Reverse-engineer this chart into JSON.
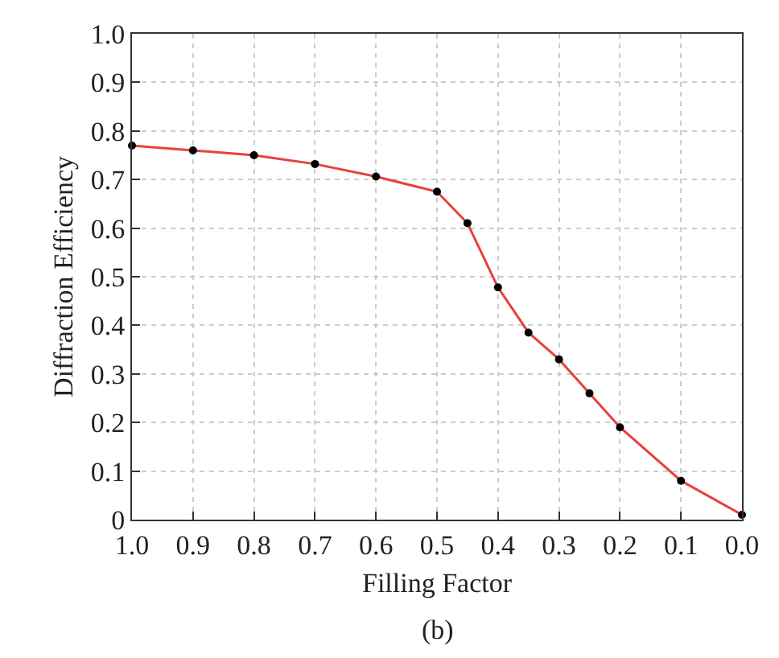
{
  "chart_data": {
    "type": "line",
    "xlabel": "Filling Factor",
    "ylabel": "Diffraction Efficiency",
    "annotations": [
      "(b)"
    ],
    "x": [
      1.0,
      0.9,
      0.8,
      0.7,
      0.6,
      0.5,
      0.45,
      0.4,
      0.35,
      0.3,
      0.25,
      0.2,
      0.1,
      0.0
    ],
    "series": [
      {
        "color": "#e8413c",
        "values": [
          0.77,
          0.76,
          0.75,
          0.732,
          0.706,
          0.675,
          0.61,
          0.478,
          0.385,
          0.33,
          0.26,
          0.19,
          0.08,
          0.01
        ]
      }
    ],
    "xlim": [
      1.0,
      0.0
    ],
    "ylim": [
      0,
      1.0
    ],
    "xticks": [
      {
        "value": 1.0,
        "label": "1.0"
      },
      {
        "value": 0.9,
        "label": "0.9"
      },
      {
        "value": 0.8,
        "label": "0.8"
      },
      {
        "value": 0.7,
        "label": "0.7"
      },
      {
        "value": 0.6,
        "label": "0.6"
      },
      {
        "value": 0.5,
        "label": "0.5"
      },
      {
        "value": 0.4,
        "label": "0.4"
      },
      {
        "value": 0.3,
        "label": "0.3"
      },
      {
        "value": 0.2,
        "label": "0.2"
      },
      {
        "value": 0.1,
        "label": "0.1"
      },
      {
        "value": 0.0,
        "label": "0.0"
      }
    ],
    "yticks": [
      0,
      {
        "value": 0.1,
        "label": "0.1"
      },
      {
        "value": 0.2,
        "label": "0.2"
      },
      {
        "value": 0.3,
        "label": "0.3"
      },
      {
        "value": 0.4,
        "label": "0.4"
      },
      {
        "value": 0.5,
        "label": "0.5"
      },
      {
        "value": 0.6,
        "label": "0.6"
      },
      {
        "value": 0.7,
        "label": "0.7"
      },
      {
        "value": 0.8,
        "label": "0.8"
      },
      {
        "value": 0.9,
        "label": "0.9"
      },
      {
        "value": 1.0,
        "label": "1.0"
      }
    ],
    "grid": true,
    "marker": "circle",
    "line_style": "solid"
  }
}
